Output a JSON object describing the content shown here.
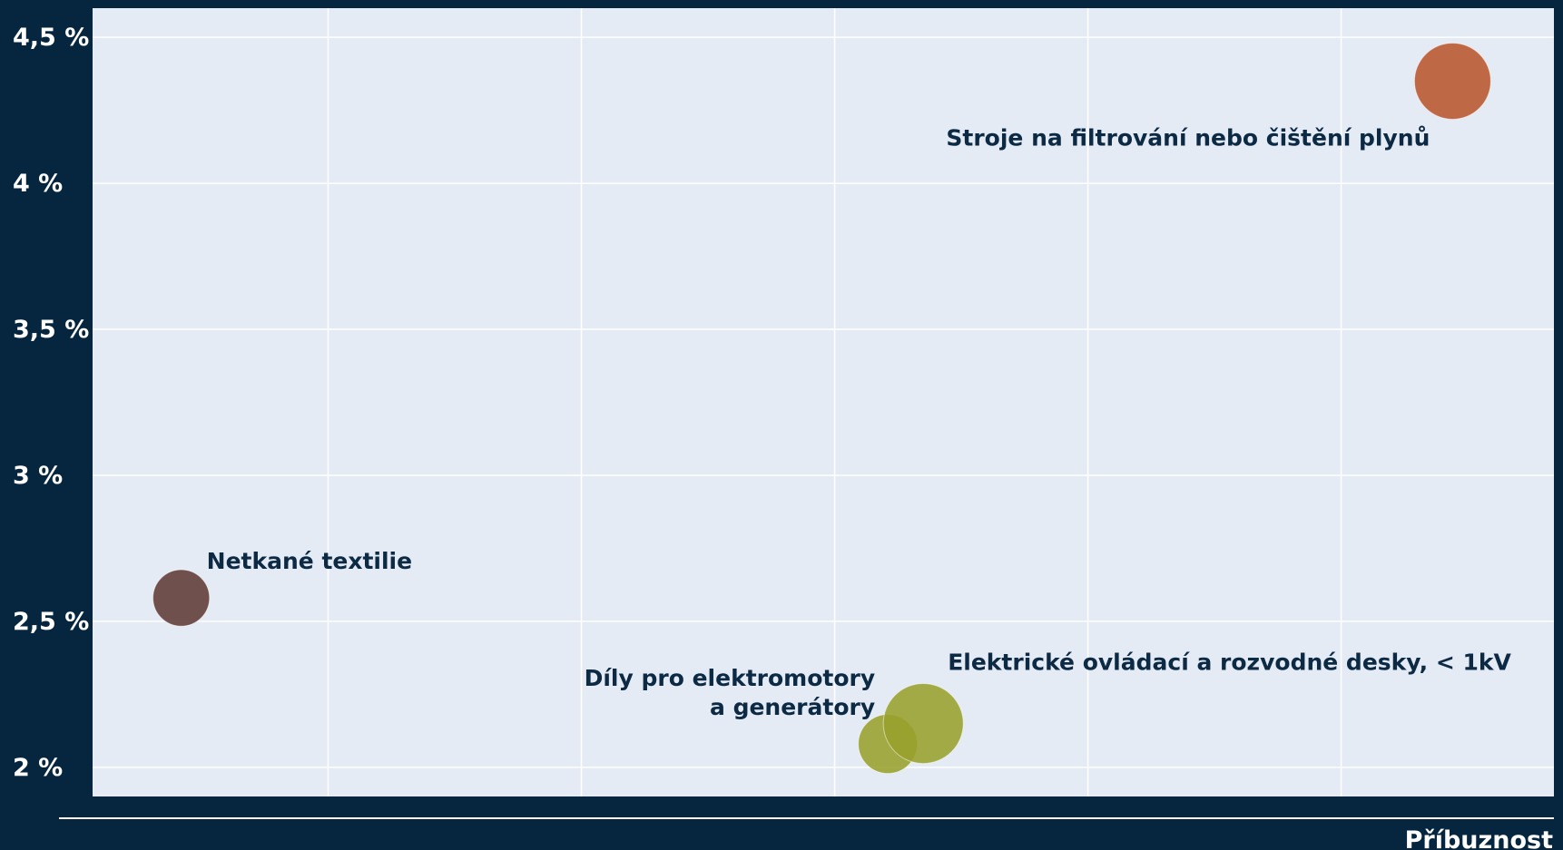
{
  "chart_data": {
    "type": "scatter",
    "title": "",
    "xlabel": "Příbuznost",
    "ylabel": "",
    "xlim": [
      0,
      5.77
    ],
    "ylim": [
      1.9,
      4.6
    ],
    "x_ticks": [
      0.93,
      1.93,
      2.93,
      3.93,
      4.93
    ],
    "y_ticks": [
      2,
      2.5,
      3,
      3.5,
      4,
      4.5
    ],
    "y_tick_labels": [
      "2 %",
      "2,5 %",
      "3 %",
      "3,5 %",
      "4 %",
      "4,5 %"
    ],
    "grid": true,
    "legend": "none",
    "points": [
      {
        "label": "Stroje na filtrování nebo čištění plynů",
        "x": 5.37,
        "y": 4.35,
        "size": 1.0,
        "color": "#b9552c"
      },
      {
        "label": "Netkané textilie",
        "x": 0.35,
        "y": 2.58,
        "size": 0.55,
        "color": "#5e3a35"
      },
      {
        "label": "Díly pro elektromotory\na generátory",
        "x": 3.14,
        "y": 2.08,
        "size": 0.6,
        "color": "#98a02c"
      },
      {
        "label": "Elektrické ovládací a rozvodné desky, < 1kV",
        "x": 3.28,
        "y": 2.15,
        "size": 1.1,
        "color": "#98a02c"
      }
    ]
  }
}
